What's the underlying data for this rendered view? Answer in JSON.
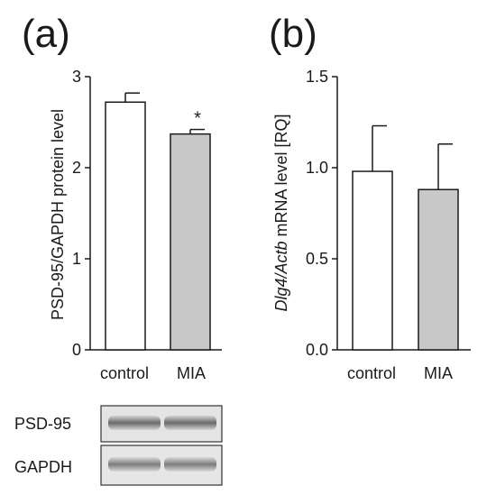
{
  "chart_data": [
    {
      "type": "bar",
      "panel_label": "(a)",
      "categories": [
        "control",
        "MIA"
      ],
      "values": [
        2.72,
        2.37
      ],
      "errors": [
        0.1,
        0.05
      ],
      "colors": [
        "#ffffff",
        "#c8c8c8"
      ],
      "significance": [
        "",
        "*"
      ],
      "ylabel": "PSD-95/GAPDH protein level",
      "ylim": [
        0,
        3
      ],
      "yticks": [
        0,
        1,
        2,
        3
      ],
      "ytick_labels": [
        "0",
        "1",
        "2",
        "3"
      ],
      "blot_labels": [
        "PSD-95",
        "GAPDH"
      ]
    },
    {
      "type": "bar",
      "panel_label": "(b)",
      "categories": [
        "control",
        "MIA"
      ],
      "values": [
        0.98,
        0.88
      ],
      "errors": [
        0.25,
        0.25
      ],
      "colors": [
        "#ffffff",
        "#c8c8c8"
      ],
      "ylabel_italic": "Dlg4/Actb",
      "ylabel_rest": " mRNA level [RQ]",
      "ylim": [
        0,
        1.5
      ],
      "yticks": [
        0,
        0.5,
        1.0,
        1.5
      ],
      "ytick_labels": [
        "0.0",
        "0.5",
        "1.0",
        "1.5"
      ]
    }
  ]
}
